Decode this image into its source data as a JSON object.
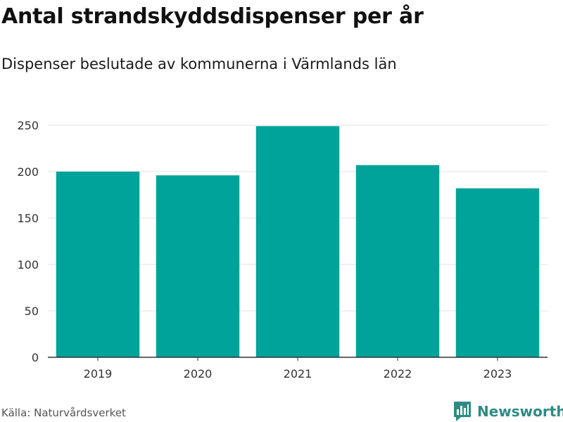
{
  "header": {
    "title": "Antal strandskyddsdispenser per år",
    "subtitle": "Dispenser beslutade av kommunerna i Värmlands län"
  },
  "footer": {
    "source": "Källa: Naturvårdsverket",
    "brand": "Newsworthy",
    "brand_icon": "bar-chart-speech-bubble-icon"
  },
  "colors": {
    "bar": "#00a39a",
    "grid": "#e0e0e0",
    "axis": "#333333",
    "brand": "#2e8b84"
  },
  "chart_data": {
    "type": "bar",
    "title": "Antal strandskyddsdispenser per år",
    "subtitle": "Dispenser beslutade av kommunerna i Värmlands län",
    "categories": [
      "2019",
      "2020",
      "2021",
      "2022",
      "2023"
    ],
    "values": [
      200,
      196,
      249,
      207,
      182
    ],
    "xlabel": "",
    "ylabel": "",
    "ylim": [
      0,
      250
    ],
    "yticks": [
      0,
      50,
      100,
      150,
      200,
      250
    ],
    "grid": true,
    "legend": "none"
  }
}
